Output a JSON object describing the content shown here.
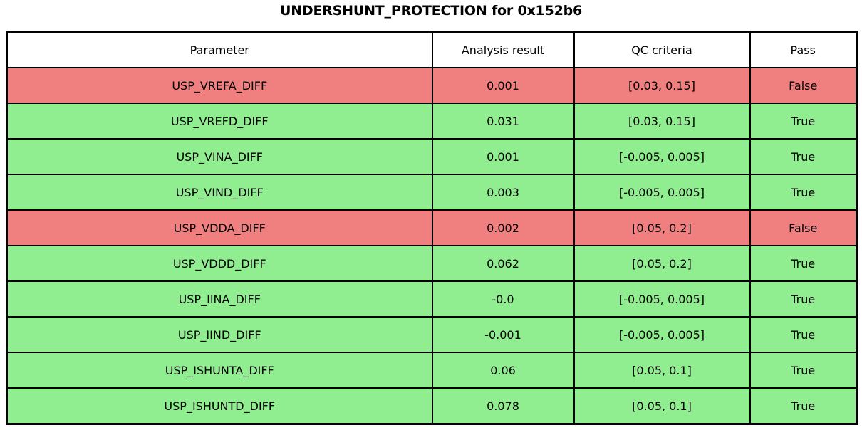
{
  "chart_data": {
    "type": "table",
    "title": "UNDERSHUNT_PROTECTION for 0x152b6",
    "columns": [
      "Parameter",
      "Analysis result",
      "QC criteria",
      "Pass"
    ],
    "rows": [
      {
        "parameter": "USP_VREFA_DIFF",
        "analysis_result": "0.001",
        "qc_criteria": "[0.03, 0.15]",
        "pass": "False",
        "row_status": "fail"
      },
      {
        "parameter": "USP_VREFD_DIFF",
        "analysis_result": "0.031",
        "qc_criteria": "[0.03, 0.15]",
        "pass": "True",
        "row_status": "pass"
      },
      {
        "parameter": "USP_VINA_DIFF",
        "analysis_result": "0.001",
        "qc_criteria": "[-0.005, 0.005]",
        "pass": "True",
        "row_status": "pass"
      },
      {
        "parameter": "USP_VIND_DIFF",
        "analysis_result": "0.003",
        "qc_criteria": "[-0.005, 0.005]",
        "pass": "True",
        "row_status": "pass"
      },
      {
        "parameter": "USP_VDDA_DIFF",
        "analysis_result": "0.002",
        "qc_criteria": "[0.05, 0.2]",
        "pass": "False",
        "row_status": "fail"
      },
      {
        "parameter": "USP_VDDD_DIFF",
        "analysis_result": "0.062",
        "qc_criteria": "[0.05, 0.2]",
        "pass": "True",
        "row_status": "pass"
      },
      {
        "parameter": "USP_IINA_DIFF",
        "analysis_result": "-0.0",
        "qc_criteria": "[-0.005, 0.005]",
        "pass": "True",
        "row_status": "pass"
      },
      {
        "parameter": "USP_IIND_DIFF",
        "analysis_result": "-0.001",
        "qc_criteria": "[-0.005, 0.005]",
        "pass": "True",
        "row_status": "pass"
      },
      {
        "parameter": "USP_ISHUNTA_DIFF",
        "analysis_result": "0.06",
        "qc_criteria": "[0.05, 0.1]",
        "pass": "True",
        "row_status": "pass"
      },
      {
        "parameter": "USP_ISHUNTD_DIFF",
        "analysis_result": "0.078",
        "qc_criteria": "[0.05, 0.1]",
        "pass": "True",
        "row_status": "pass"
      }
    ],
    "layout": {
      "legend": "none",
      "grid": "full-cell-borders",
      "header_position": "top"
    },
    "colors": {
      "pass_row": "#90ee90",
      "fail_row": "#f08080",
      "header_bg": "#ffffff",
      "border": "#000000",
      "text": "#000000"
    }
  }
}
